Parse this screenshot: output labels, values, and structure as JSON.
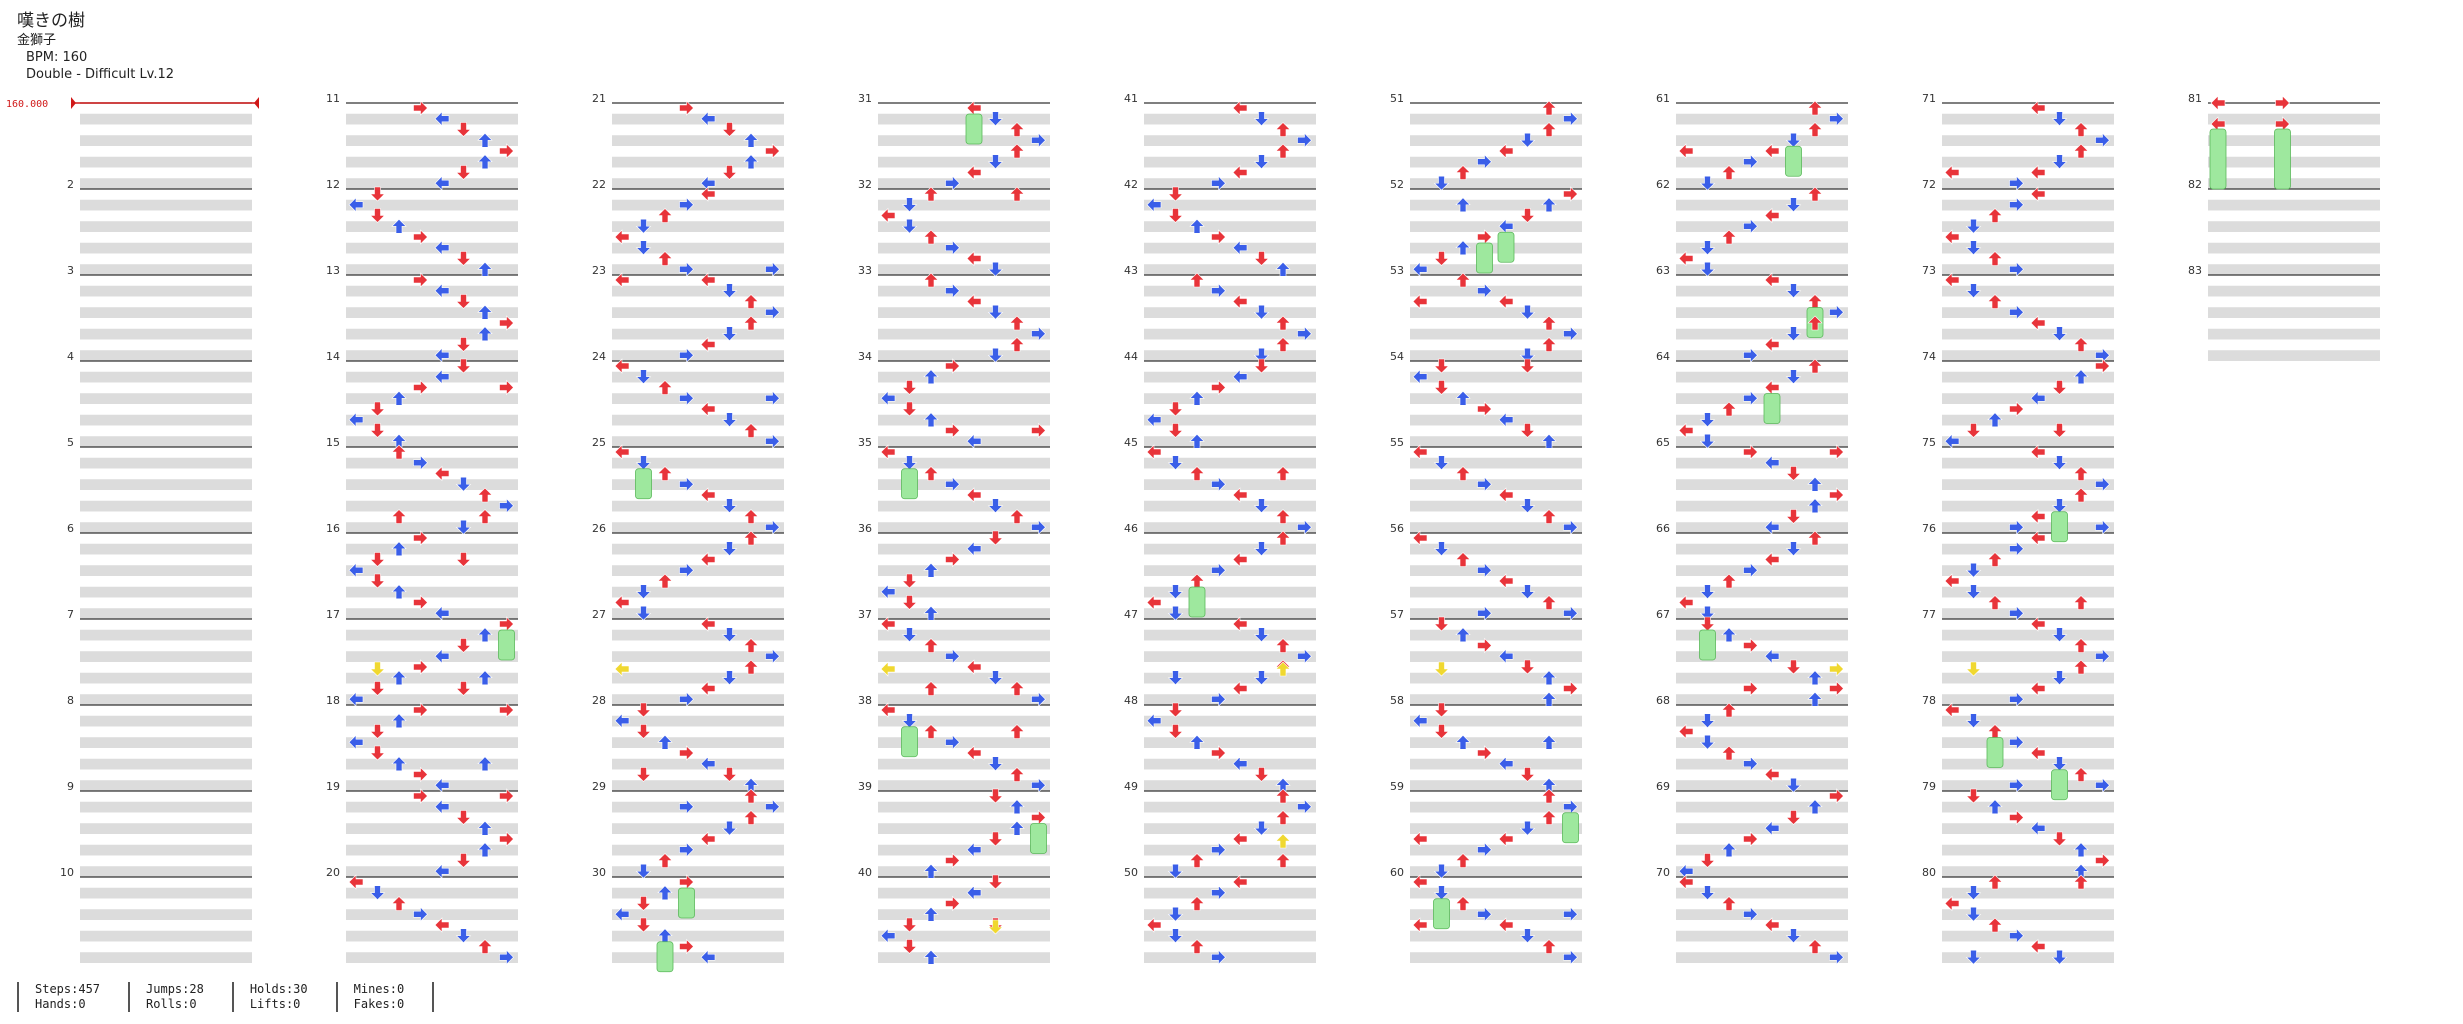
{
  "song": {
    "title": "嘆きの樹",
    "artist": "金獅子",
    "bpm_label": "BPM: 160",
    "difficulty_label": "Double - Difficult  Lv.12"
  },
  "bpm_marker": "160.000",
  "measure_labels": [
    "2",
    "3",
    "4",
    "5",
    "6",
    "7",
    "8",
    "9",
    "10",
    "11",
    "12",
    "13",
    "14",
    "15",
    "16",
    "17",
    "18",
    "19",
    "20",
    "21",
    "22",
    "23",
    "24",
    "25",
    "26",
    "27",
    "28",
    "29",
    "30",
    "31",
    "32",
    "33",
    "34",
    "35",
    "36",
    "37",
    "38",
    "39",
    "40",
    "41",
    "42",
    "43",
    "44",
    "45",
    "46",
    "47",
    "48",
    "49",
    "50",
    "51",
    "52",
    "53",
    "54",
    "55",
    "56",
    "57",
    "58",
    "59",
    "60",
    "61",
    "62",
    "63",
    "64",
    "65",
    "66",
    "67",
    "68",
    "69",
    "70",
    "71",
    "72",
    "73",
    "74",
    "75",
    "76",
    "77",
    "78",
    "79",
    "80",
    "81",
    "82",
    "83"
  ],
  "stats": [
    {
      "top": "Steps:457",
      "bottom": "Hands:0"
    },
    {
      "top": "Jumps:28",
      "bottom": "Rolls:0"
    },
    {
      "top": "Holds:30",
      "bottom": "Lifts:0"
    },
    {
      "top": "Mines:0",
      "bottom": "Fakes:0"
    }
  ],
  "colors": {
    "quarter_note": "#e8343a",
    "eighth_note": "#3a5ee8",
    "sixteenth_note": "#f0d830",
    "hold_body": "#9ee89e",
    "stripe": "#dcdcdc",
    "bpm_marker": "#d01818"
  }
}
